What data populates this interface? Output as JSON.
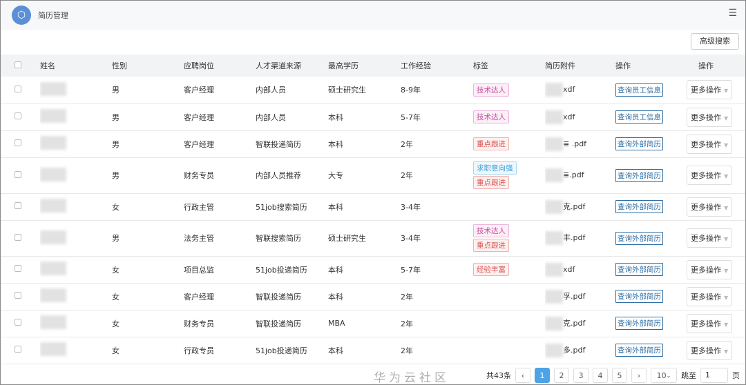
{
  "header": {
    "title": "简历管理",
    "logo_icon": "cube-icon",
    "menu_icon": "list-icon"
  },
  "toolbar": {
    "advanced_search": "高级搜索"
  },
  "table": {
    "columns": [
      "姓名",
      "性别",
      "应聘岗位",
      "人才渠道来源",
      "最高学历",
      "工作经验",
      "标签",
      "简历附件",
      "操作",
      "操作"
    ],
    "rows": [
      {
        "gender": "男",
        "position": "客户经理",
        "source": "内部人员",
        "education": "硕士研究生",
        "experience": "8-9年",
        "tags": [
          {
            "text": "技术达人",
            "cls": "t-pink"
          }
        ],
        "attachment": "xdf",
        "action": "查询员工信息",
        "more": "更多操作"
      },
      {
        "gender": "男",
        "position": "客户经理",
        "source": "内部人员",
        "education": "本科",
        "experience": "5-7年",
        "tags": [
          {
            "text": "技术达人",
            "cls": "t-pink"
          }
        ],
        "attachment": "xdf",
        "action": "查询员工信息",
        "more": "更多操作"
      },
      {
        "gender": "男",
        "position": "客户经理",
        "source": "智联投递简历",
        "education": "本科",
        "experience": "2年",
        "tags": [
          {
            "text": "重点跟进",
            "cls": "t-red"
          }
        ],
        "attachment": "≣ .pdf",
        "action": "查询外部简历",
        "more": "更多操作"
      },
      {
        "gender": "男",
        "position": "财务专员",
        "source": "内部人员推荐",
        "education": "大专",
        "experience": "2年",
        "tags": [
          {
            "text": "求职意向强",
            "cls": "t-blue"
          },
          {
            "text": "重点跟进",
            "cls": "t-red"
          }
        ],
        "attachment": "≣.pdf",
        "action": "查询外部简历",
        "more": "更多操作"
      },
      {
        "gender": "女",
        "position": "行政主管",
        "source": "51job搜索简历",
        "education": "本科",
        "experience": "3-4年",
        "tags": [],
        "attachment": "克.pdf",
        "action": "查询外部简历",
        "more": "更多操作"
      },
      {
        "gender": "男",
        "position": "法务主管",
        "source": "智联搜索简历",
        "education": "硕士研究生",
        "experience": "3-4年",
        "tags": [
          {
            "text": "技术达人",
            "cls": "t-pink"
          },
          {
            "text": "重点跟进",
            "cls": "t-red"
          }
        ],
        "attachment": "丰.pdf",
        "action": "查询外部简历",
        "more": "更多操作"
      },
      {
        "gender": "女",
        "position": "项目总监",
        "source": "51job投递简历",
        "education": "本科",
        "experience": "5-7年",
        "tags": [
          {
            "text": "经验丰富",
            "cls": "t-orange"
          }
        ],
        "attachment": "xdf",
        "action": "查询外部简历",
        "more": "更多操作"
      },
      {
        "gender": "女",
        "position": "客户经理",
        "source": "智联投递简历",
        "education": "本科",
        "experience": "2年",
        "tags": [],
        "attachment": "孚.pdf",
        "action": "查询外部简历",
        "more": "更多操作"
      },
      {
        "gender": "女",
        "position": "财务专员",
        "source": "智联投递简历",
        "education": "MBA",
        "experience": "2年",
        "tags": [],
        "attachment": "克.pdf",
        "action": "查询外部简历",
        "more": "更多操作"
      },
      {
        "gender": "女",
        "position": "行政专员",
        "source": "51job投递简历",
        "education": "本科",
        "experience": "2年",
        "tags": [],
        "attachment": "多.pdf",
        "action": "查询外部简历",
        "more": "更多操作"
      }
    ]
  },
  "pagination": {
    "total": "共43条",
    "prev": "‹",
    "next": "›",
    "pages": [
      "1",
      "2",
      "3",
      "4",
      "5"
    ],
    "current": "1",
    "page_size": "10",
    "jump_label": "跳至",
    "jump_value": "1",
    "page_suffix": "页"
  },
  "watermark": "华为云社区"
}
